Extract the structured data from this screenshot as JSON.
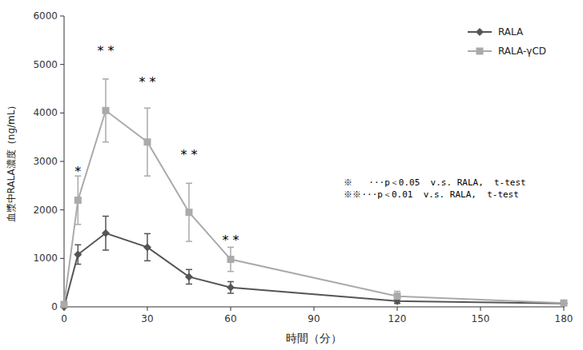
{
  "chart_data": {
    "type": "line",
    "x_label": "時間（分）",
    "y_label": "血漿中RALA濃度（ng/mL）",
    "x": [
      0,
      5,
      15,
      30,
      45,
      60,
      120,
      180
    ],
    "series": [
      {
        "name": "RALA",
        "color": "#555555",
        "marker": "diamond",
        "values": [
          0,
          1080,
          1520,
          1230,
          620,
          400,
          120,
          70
        ],
        "errors": [
          0,
          200,
          350,
          280,
          150,
          120,
          50,
          30
        ]
      },
      {
        "name": "RALA-γCD",
        "color": "#aaaaaa",
        "marker": "square",
        "values": [
          50,
          2200,
          4050,
          3400,
          1950,
          980,
          220,
          80
        ],
        "errors": [
          20,
          500,
          650,
          700,
          600,
          250,
          100,
          30
        ]
      }
    ],
    "xlim": [
      0,
      180
    ],
    "ylim": [
      0,
      6000
    ],
    "xticks": [
      0,
      30,
      60,
      90,
      120,
      150,
      180
    ],
    "yticks": [
      0,
      1000,
      2000,
      3000,
      4000,
      5000,
      6000
    ],
    "annotations": [
      {
        "text": "*",
        "x": 5,
        "y": 2700
      },
      {
        "text": "* *",
        "x": 15,
        "y": 5200
      },
      {
        "text": "* *",
        "x": 30,
        "y": 4550
      },
      {
        "text": "* *",
        "x": 45,
        "y": 3050
      },
      {
        "text": "* *",
        "x": 60,
        "y": 1280
      }
    ],
    "notes": [
      "※   ···p＜0.05  v.s. RALA,  t-test",
      "※※···p＜0.01  v.s. RALA,  t-test"
    ],
    "legend": "upper right",
    "grid": false
  }
}
